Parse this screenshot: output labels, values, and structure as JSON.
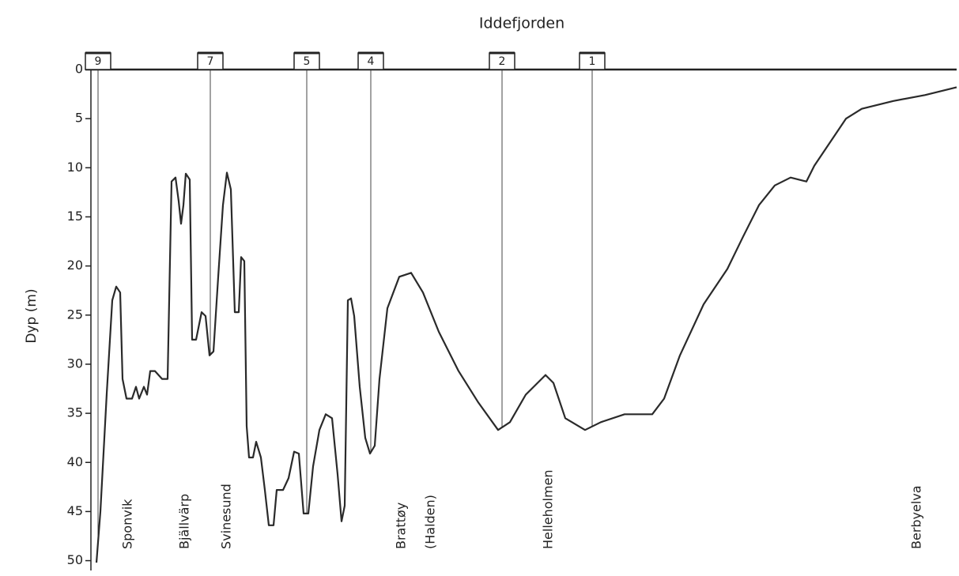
{
  "chart_data": {
    "type": "line",
    "title": "Iddefjorden",
    "y_label": "Dyp (m)",
    "ylim": [
      0,
      51
    ],
    "yticks": [
      0,
      5,
      10,
      15,
      20,
      25,
      30,
      35,
      40,
      45,
      50
    ],
    "y_inverted": true,
    "xlim": [
      115,
      1210
    ],
    "series": [
      {
        "color": "#2a2a2a",
        "x": [
          122,
          127,
          135,
          142,
          147,
          152,
          155,
          160,
          167,
          172,
          176,
          182,
          186,
          190,
          196,
          205,
          212,
          217,
          222,
          226,
          229,
          232,
          235,
          240,
          243,
          248,
          255,
          260,
          265,
          270,
          276,
          282,
          287,
          292,
          297,
          302,
          305,
          309,
          312,
          315,
          320,
          324,
          330,
          335,
          340,
          346,
          350,
          358,
          365,
          372,
          378,
          384,
          390,
          396,
          404,
          412,
          420,
          427,
          432,
          436,
          440,
          444,
          448,
          455,
          462,
          468,
          474,
          480,
          490,
          505,
          520,
          535,
          555,
          580,
          605,
          630,
          645,
          665,
          690,
          700,
          715,
          740,
          760,
          790,
          825,
          840,
          860,
          890,
          920,
          940,
          960,
          980,
          1000,
          1020,
          1030,
          1050,
          1070,
          1090,
          1130,
          1170,
          1210
        ],
        "values": [
          50.2,
          45,
          33,
          23.5,
          22.1,
          22.7,
          31.5,
          33.5,
          33.5,
          32.3,
          33.5,
          32.3,
          33.1,
          30.7,
          30.7,
          31.5,
          31.5,
          11.4,
          11,
          13.4,
          15.7,
          13.8,
          10.6,
          11.2,
          27.5,
          27.5,
          24.7,
          25.1,
          29.1,
          28.7,
          21.1,
          13.8,
          10.5,
          12.2,
          24.7,
          24.7,
          19.1,
          19.5,
          36.3,
          39.5,
          39.5,
          37.9,
          39.5,
          42.8,
          46.4,
          46.4,
          42.8,
          42.8,
          41.6,
          38.9,
          39.1,
          45.2,
          45.2,
          40.4,
          36.7,
          35.1,
          35.5,
          41.2,
          46,
          44.4,
          23.5,
          23.3,
          25.1,
          32.3,
          37.5,
          39.1,
          38.3,
          31.5,
          24.3,
          21.1,
          20.7,
          22.7,
          26.7,
          30.7,
          33.9,
          36.7,
          35.9,
          33.1,
          31.1,
          31.9,
          35.5,
          36.7,
          35.9,
          35.1,
          35.1,
          33.5,
          29.1,
          23.9,
          20.3,
          17,
          13.8,
          11.8,
          11,
          11.4,
          9.8,
          7.4,
          5,
          4,
          3.2,
          2.6,
          1.8
        ]
      }
    ],
    "stations": [
      {
        "label": "9",
        "x": 124
      },
      {
        "label": "7",
        "x": 266
      },
      {
        "label": "5",
        "x": 388
      },
      {
        "label": "4",
        "x": 469
      },
      {
        "label": "2",
        "x": 635
      },
      {
        "label": "1",
        "x": 749
      }
    ],
    "annotations": [
      "Sponvik",
      "Bjällvärp",
      "Svinesund",
      "Brattøy",
      "(Halden)",
      "Helleholmen",
      "Berbyelva"
    ]
  }
}
